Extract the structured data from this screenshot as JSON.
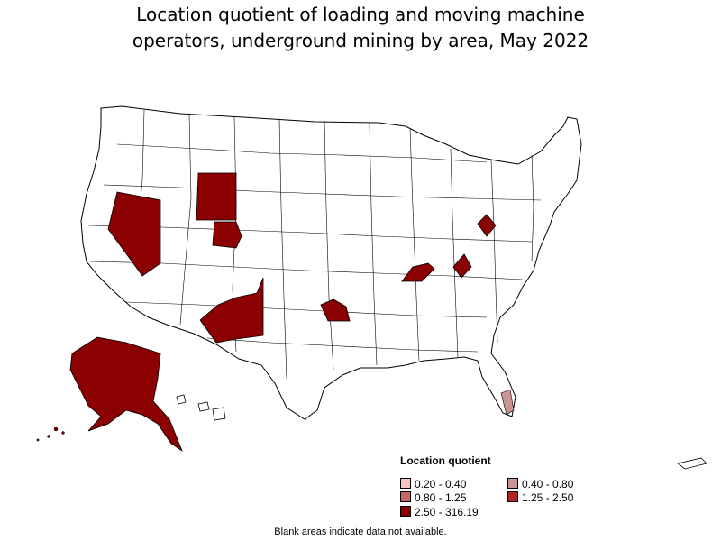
{
  "title_line1": "Location quotient of loading and moving machine",
  "title_line2": "operators, underground mining by area, May 2022",
  "legend": {
    "title": "Location quotient",
    "items": [
      {
        "label": "0.20 - 0.40",
        "color": "#f4c4c4"
      },
      {
        "label": "0.40 - 0.80",
        "color": "#c99494"
      },
      {
        "label": "0.80 - 1.25",
        "color": "#cc6666"
      },
      {
        "label": "1.25 - 2.50",
        "color": "#b22222"
      },
      {
        "label": "2.50 - 316.19",
        "color": "#8b0000"
      }
    ]
  },
  "footnote": "Blank areas indicate data not available.",
  "highlighted_areas": [
    {
      "region": "Nevada (northern)",
      "category": "2.50 - 316.19"
    },
    {
      "region": "Wyoming (western)",
      "category": "2.50 - 316.19"
    },
    {
      "region": "Wyoming (northeastern)",
      "category": "2.50 - 316.19"
    },
    {
      "region": "New Mexico (southwestern)",
      "category": "2.50 - 316.19"
    },
    {
      "region": "Oklahoma (southeastern)",
      "category": "2.50 - 316.19"
    },
    {
      "region": "Kentucky (western)",
      "category": "2.50 - 316.19"
    },
    {
      "region": "West Virginia (southern)",
      "category": "2.50 - 316.19"
    },
    {
      "region": "Ohio (eastern)",
      "category": "2.50 - 316.19"
    },
    {
      "region": "Alaska",
      "category": "2.50 - 316.19"
    },
    {
      "region": "Florida (southeastern)",
      "category": "0.40 - 0.80"
    }
  ]
}
